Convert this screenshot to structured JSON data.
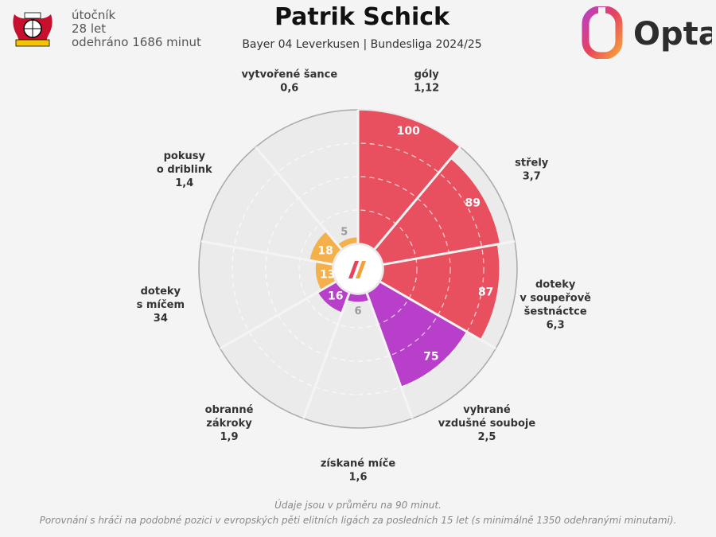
{
  "header": {
    "title": "Patrik Schick",
    "subtitle": "Bayer 04 Leverkusen | Bundesliga 2024/25",
    "position": "útočník",
    "age": "28 let",
    "minutes": "odehráno 1686 minut",
    "club_logo_text": "1904 BAYER Leverkusen",
    "opta_logo_text": "Opta"
  },
  "footnote": {
    "line1": "Údaje jsou v průměru na 90 minut.",
    "line2": "Porovnání s hráči na podobné pozici v evropských pěti elitních ligách za posledních 15 let (s minimálně 1350 odehranými minutami)."
  },
  "colors": {
    "attack": "#e8505f",
    "duel": "#b83fc9",
    "possession": "#f4b04a",
    "defense": "#b83fc9",
    "background": "#f4f4f4",
    "sector_bg": "#ebebeb"
  },
  "chart_data": {
    "type": "polar-bar",
    "scale": "percentile",
    "rlim": [
      0,
      100
    ],
    "metrics": [
      {
        "label": [
          "góly"
        ],
        "per90": "1,12",
        "percentile": 100,
        "group": "attack"
      },
      {
        "label": [
          "střely"
        ],
        "per90": "3,7",
        "percentile": 89,
        "group": "attack"
      },
      {
        "label": [
          "doteky",
          "v soupeřově",
          "šestnáctce"
        ],
        "per90": "6,3",
        "percentile": 87,
        "group": "attack"
      },
      {
        "label": [
          "vyhrané",
          "vzdušné souboje"
        ],
        "per90": "2,5",
        "percentile": 75,
        "group": "duel"
      },
      {
        "label": [
          "získané míče"
        ],
        "per90": "1,6",
        "percentile": 6,
        "group": "defense"
      },
      {
        "label": [
          "obranné",
          "zákroky"
        ],
        "per90": "1,9",
        "percentile": 16,
        "group": "defense"
      },
      {
        "label": [
          "doteky",
          "s míčem"
        ],
        "per90": "34",
        "percentile": 13,
        "group": "possession"
      },
      {
        "label": [
          "pokusy",
          "o driblink"
        ],
        "per90": "1,4",
        "percentile": 18,
        "group": "possession"
      },
      {
        "label": [
          "vytvořené šance"
        ],
        "per90": "0,6",
        "percentile": 5,
        "group": "possession"
      }
    ]
  }
}
